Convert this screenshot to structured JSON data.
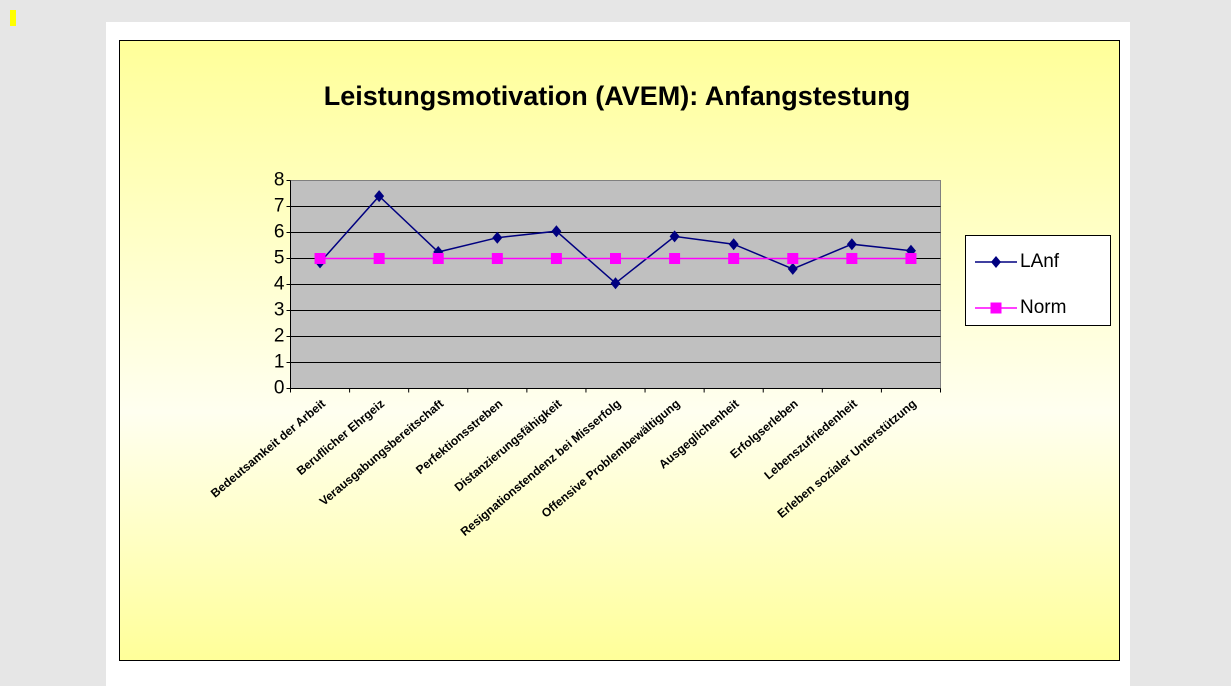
{
  "chart_data": {
    "type": "line",
    "title": "Leistungsmotivation (AVEM): Anfangstestung",
    "categories": [
      "Bedeutsamkeit der Arbeit",
      "Beruflicher Ehrgeiz",
      "Verausgabungsbereitschaft",
      "Perfektionsstreben",
      "Distanzierungsfähigkeit",
      "Resignationstendenz bei Misserfolg",
      "Offensive Problembewältigung",
      "Ausgeglichenheit",
      "Erfolgserleben",
      "Lebenszufriedenheit",
      "Erleben sozialer Unterstützung"
    ],
    "series": [
      {
        "name": "LAnf",
        "color": "#000080",
        "marker": "diamond",
        "values": [
          4.85,
          7.4,
          5.25,
          5.8,
          6.05,
          4.05,
          5.85,
          5.55,
          4.6,
          5.55,
          5.3
        ]
      },
      {
        "name": "Norm",
        "color": "#ff00ff",
        "marker": "square",
        "values": [
          5,
          5,
          5,
          5,
          5,
          5,
          5,
          5,
          5,
          5,
          5
        ]
      }
    ],
    "ylim": [
      0,
      8
    ],
    "yticks": [
      0,
      1,
      2,
      3,
      4,
      5,
      6,
      7,
      8
    ],
    "grid": true,
    "legend": "right"
  }
}
